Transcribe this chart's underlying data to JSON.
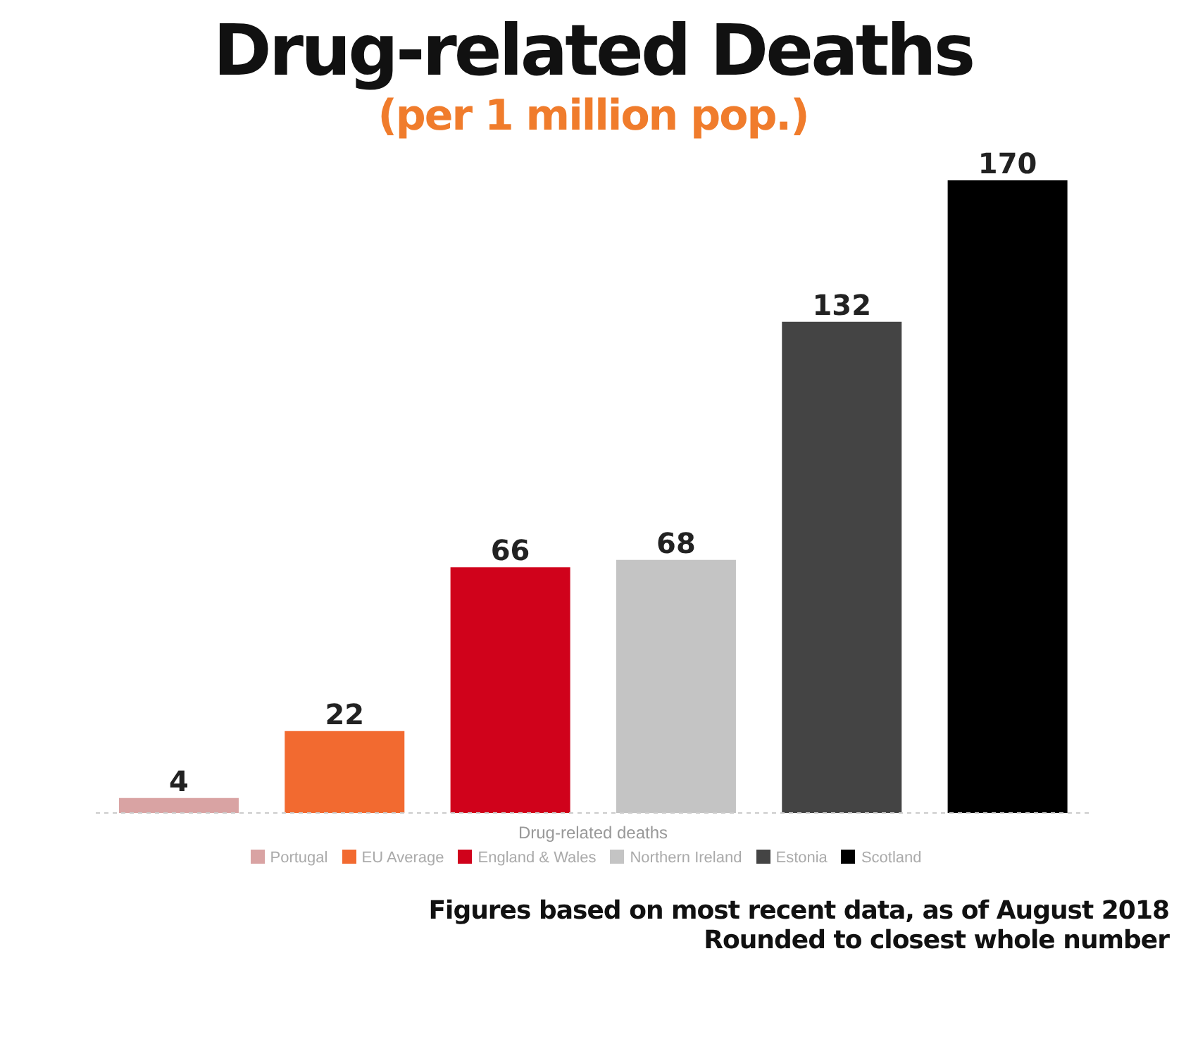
{
  "chart_data": {
    "type": "bar",
    "title": "Drug-related Deaths",
    "subtitle": "(per 1 million pop.)",
    "xlabel": "Drug-related deaths",
    "categories": [
      null,
      null,
      null,
      null,
      null,
      null
    ],
    "series": [
      {
        "name": "Portugal",
        "color": "#d9a3a3",
        "values": [
          4,
          null,
          null,
          null,
          null,
          null
        ]
      },
      {
        "name": "EU Average",
        "color": "#f26a30",
        "values": [
          null,
          22,
          null,
          null,
          null,
          null
        ]
      },
      {
        "name": "England & Wales",
        "color": "#d0021b",
        "values": [
          null,
          null,
          66,
          null,
          null,
          null
        ]
      },
      {
        "name": "Northern Ireland",
        "color": "#c4c4c4",
        "values": [
          null,
          null,
          null,
          68,
          null,
          null
        ]
      },
      {
        "name": "Estonia",
        "color": "#444444",
        "values": [
          null,
          null,
          null,
          null,
          132,
          null
        ]
      },
      {
        "name": "Scotland",
        "color": "#000000",
        "values": [
          null,
          null,
          null,
          null,
          null,
          170
        ]
      }
    ],
    "stacked": true,
    "tick_labels": false,
    "data_labels": true,
    "legend": "bottom",
    "annotations": [
      "Figures based on most recent data, as of August 2018",
      "Rounded to closest whole number"
    ]
  }
}
